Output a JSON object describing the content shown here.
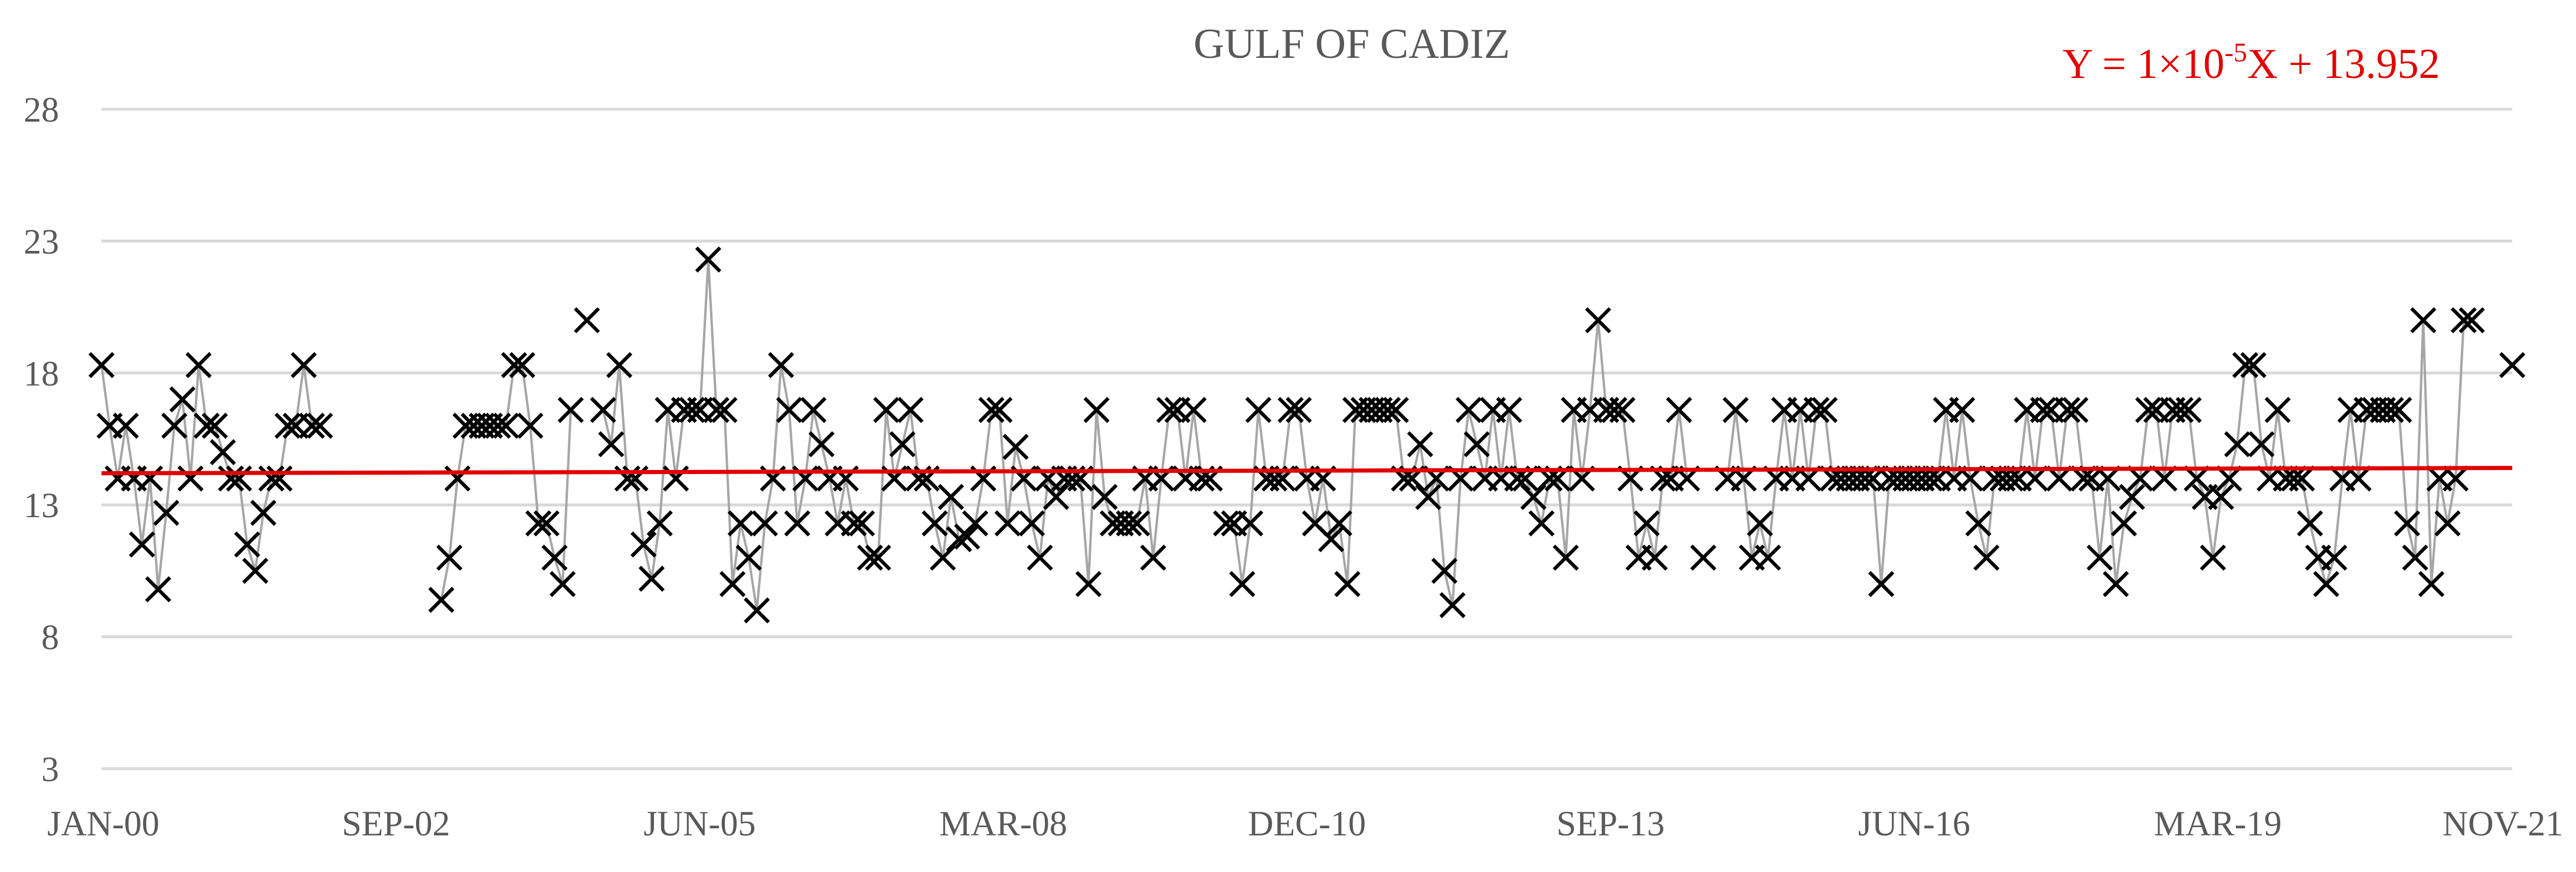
{
  "chart_data": {
    "type": "line",
    "title": "GULF OF CADIZ",
    "annotation": "Y = 1×10-5X + 13.952",
    "annotation_parts": {
      "pre": "Y = 1×10",
      "sup": "-5",
      "post": "X + 13.952"
    },
    "colors": {
      "series_line": "#a6a6a6",
      "marker": "#000000",
      "trend": "#e00000",
      "grid": "#d9d9d9",
      "text": "#595959"
    },
    "ylim": [
      3,
      28
    ],
    "yticks": [
      3,
      8,
      13,
      18,
      23,
      28
    ],
    "xtick_labels": [
      "JAN-00",
      "SEP-02",
      "JUN-05",
      "MAR-08",
      "DEC-10",
      "SEP-13",
      "JUN-16",
      "MAR-19",
      "NOV-21"
    ],
    "x_start": "2000-01",
    "x_end": "2021-11",
    "grid": "horizontal",
    "legend": "none",
    "marker_style": "x",
    "trendline": {
      "start": 14.2,
      "end": 14.4
    },
    "series": [
      {
        "values": [
          18.3,
          16,
          14,
          16,
          14,
          11.5,
          14,
          9.8,
          12.7,
          16,
          17,
          14,
          18.3,
          16,
          16,
          15,
          14,
          14,
          11.5,
          10.5,
          12.7,
          14,
          14,
          16,
          16,
          18.3,
          16,
          16,
          null,
          null,
          null,
          null,
          null,
          null,
          null,
          null,
          null,
          null,
          null,
          null,
          null,
          null,
          9.4,
          11,
          14,
          16,
          16,
          16,
          16,
          16,
          16,
          18.3,
          18.3,
          16,
          12.3,
          12.3,
          11,
          10,
          16.6,
          null,
          20,
          null,
          16.6,
          15.3,
          18.3,
          14,
          14,
          11.5,
          10.2,
          12.3,
          16.6,
          14,
          16.6,
          16.6,
          16.6,
          22.3,
          16.6,
          16.6,
          10,
          12.3,
          11,
          9,
          12.3,
          14,
          18.3,
          16.6,
          12.3,
          14,
          16.6,
          15.3,
          14,
          12.3,
          14,
          12.3,
          12.3,
          11,
          11,
          16.6,
          14,
          15.3,
          16.6,
          14,
          14,
          12.3,
          11,
          13.3,
          11.7,
          11.8,
          12.3,
          14,
          16.6,
          16.6,
          12.3,
          15.2,
          14,
          12.3,
          11,
          14,
          13.3,
          14,
          14,
          14,
          10,
          16.6,
          13.3,
          12.3,
          12.3,
          12.3,
          12.3,
          14,
          11,
          14,
          16.6,
          16.6,
          14,
          16.6,
          14,
          14,
          null,
          12.3,
          12.3,
          10,
          12.3,
          16.6,
          14,
          14,
          14,
          16.6,
          16.6,
          14,
          12.3,
          14,
          11.7,
          12.3,
          10,
          16.6,
          16.6,
          16.6,
          16.6,
          16.6,
          16.6,
          14,
          14,
          15.3,
          13.3,
          14,
          10.5,
          9.2,
          14,
          16.6,
          15.3,
          14,
          16.6,
          14,
          16.6,
          14,
          14,
          13.3,
          12.3,
          14,
          14,
          11,
          16.6,
          14,
          16.6,
          20,
          16.6,
          16.6,
          16.6,
          14,
          11,
          12.3,
          11,
          14,
          14,
          16.6,
          14,
          null,
          11,
          null,
          null,
          14,
          16.6,
          14,
          11,
          12.3,
          11,
          14,
          16.6,
          14,
          16.6,
          14,
          16.6,
          16.6,
          14,
          14,
          14,
          14,
          14,
          14,
          10,
          14,
          14,
          14,
          14,
          14,
          14,
          14,
          16.6,
          14,
          16.6,
          14,
          12.3,
          11,
          14,
          14,
          14,
          14,
          16.6,
          14,
          16.6,
          16.6,
          14,
          16.6,
          16.6,
          14,
          14,
          11,
          14,
          10,
          12.3,
          13.3,
          14,
          16.6,
          16.6,
          14,
          16.6,
          16.6,
          16.6,
          14,
          13.3,
          11,
          13.3,
          14,
          15.3,
          18.3,
          18.3,
          15.3,
          14,
          16.6,
          14,
          14,
          14,
          12.3,
          11,
          10,
          11,
          14,
          16.6,
          14,
          16.6,
          16.6,
          16.6,
          16.6,
          16.6,
          12.3,
          11,
          20,
          10,
          14,
          12.3,
          14,
          20,
          20,
          null,
          null,
          null,
          null,
          18.3
        ]
      }
    ]
  }
}
